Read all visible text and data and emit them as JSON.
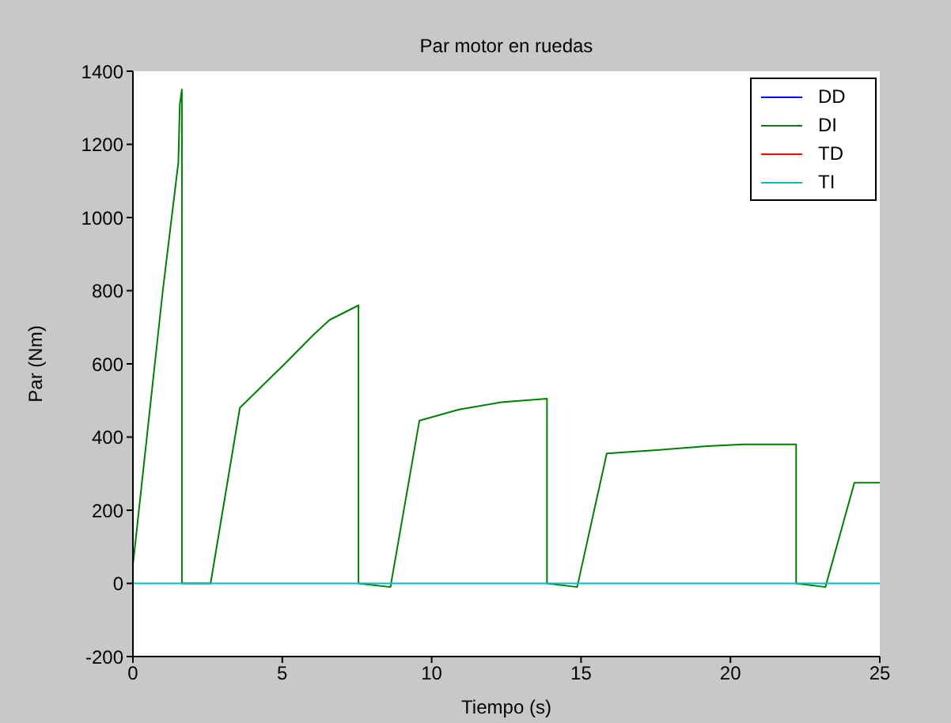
{
  "chart_data": {
    "type": "line",
    "title": "Par motor en ruedas",
    "xlabel": "Tiempo (s)",
    "ylabel": "Par (Nm)",
    "xlim": [
      0,
      25
    ],
    "xticks": [
      0,
      5,
      10,
      15,
      20,
      25
    ],
    "ylim": [
      -200,
      1400
    ],
    "yticks": [
      -200,
      0,
      200,
      400,
      600,
      800,
      1000,
      1200,
      1400
    ],
    "legend": "top right",
    "series": [
      {
        "name": "DD",
        "color": "#0000ff"
      },
      {
        "name": "DI",
        "color": "#008000",
        "x": [
          0,
          1.0,
          1.52,
          1.57,
          1.64,
          1.64,
          2.6,
          3.58,
          5.08,
          6.05,
          6.58,
          7.55,
          7.55,
          8.62,
          9.59,
          10.91,
          12.32,
          13.86,
          13.86,
          14.87,
          15.86,
          17.62,
          19.21,
          20.44,
          22.2,
          22.2,
          23.18,
          24.15,
          25
        ],
        "values": [
          50,
          800,
          1150,
          1310,
          1350,
          0,
          0,
          480,
          600,
          680,
          720,
          760,
          0,
          -10,
          445,
          475,
          495,
          505,
          0,
          -10,
          355,
          365,
          375,
          380,
          380,
          0,
          -10,
          275,
          275
        ]
      },
      {
        "name": "TD",
        "color": "#ff0000"
      },
      {
        "name": "TI",
        "color": "#00bfbf",
        "x": [
          0,
          25
        ],
        "values": [
          0,
          0
        ]
      }
    ]
  }
}
